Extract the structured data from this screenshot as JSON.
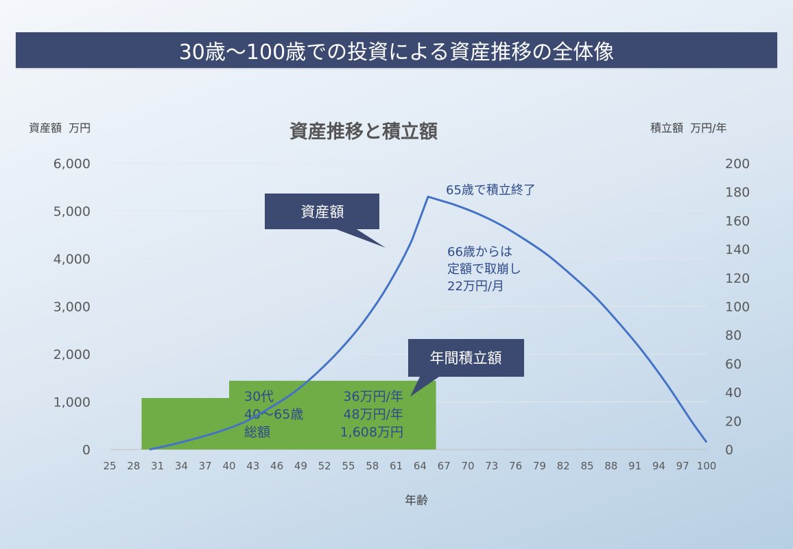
{
  "banner_title": "30歳～100歳での投資による資産推移の全体像",
  "chart_data": {
    "type": "line",
    "title": "資産推移と積立額",
    "xlabel": "年齢",
    "ylabel_left": "資産額 万円",
    "ylabel_right": "積立額 万円/年",
    "ylim_left": [
      0,
      6000
    ],
    "ylim_right": [
      0,
      200
    ],
    "yticks_left": [
      "0",
      "1,000",
      "2,000",
      "3,000",
      "4,000",
      "5,000",
      "6,000"
    ],
    "yticks_right": [
      "0",
      "20",
      "40",
      "60",
      "80",
      "100",
      "120",
      "140",
      "160",
      "180",
      "200"
    ],
    "x_range": [
      25,
      100
    ],
    "x_ticks": [
      "25",
      "28",
      "31",
      "34",
      "37",
      "40",
      "43",
      "46",
      "49",
      "52",
      "55",
      "58",
      "61",
      "64",
      "67",
      "70",
      "73",
      "76",
      "79",
      "82",
      "85",
      "88",
      "91",
      "94",
      "97",
      "100"
    ],
    "series": [
      {
        "name": "資産額",
        "axis": "left",
        "x": [
          30,
          33,
          36,
          39,
          42,
          45,
          48,
          51,
          54,
          57,
          60,
          63,
          65,
          68,
          71,
          74,
          77,
          80,
          83,
          86,
          89,
          92,
          95,
          98,
          100
        ],
        "y": [
          0,
          110,
          240,
          390,
          580,
          860,
          1180,
          1600,
          2100,
          2700,
          3450,
          4400,
          5300,
          5150,
          4960,
          4720,
          4420,
          4080,
          3660,
          3200,
          2650,
          2050,
          1370,
          620,
          150
        ],
        "color": "#4472c4"
      },
      {
        "name": "年間積立額",
        "axis": "right",
        "type": "area",
        "x": [
          29,
          40,
          40,
          66
        ],
        "y": [
          36,
          36,
          48,
          48
        ],
        "color": "#70ad47"
      }
    ],
    "callouts": [
      {
        "text": "資産額"
      },
      {
        "text": "年間積立額"
      }
    ],
    "annotations": [
      {
        "text": "65歳で積立終了"
      },
      {
        "lines": [
          "66歳からは",
          "定額で取崩し",
          "22万円/月"
        ]
      }
    ],
    "box_table": [
      [
        "30代",
        "36万円/年"
      ],
      [
        "40～65歳",
        "48万円/年"
      ],
      [
        "総額",
        "1,608万円"
      ]
    ]
  }
}
